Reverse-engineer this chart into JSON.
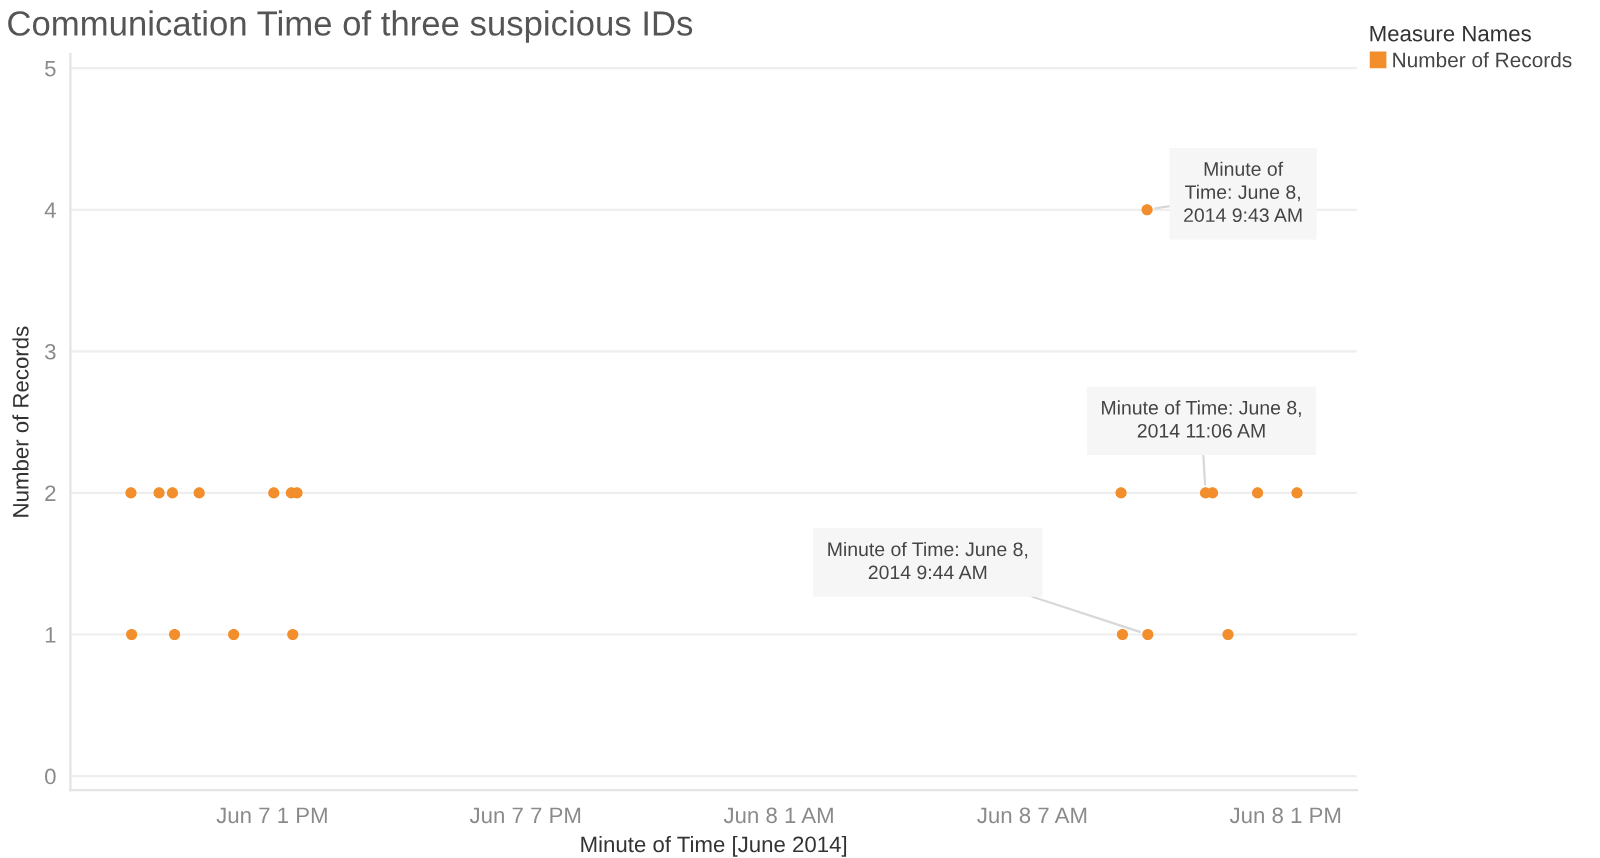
{
  "chart_data": {
    "type": "scatter",
    "title": "Communication Time of three suspicious IDs",
    "xlabel": "Minute of Time [June 2014]",
    "ylabel": "Number of Records",
    "legend_title": "Measure Names",
    "x": [
      "2014-06-07T09:39",
      "2014-06-07T09:40",
      "2014-06-07T10:19",
      "2014-06-07T10:38",
      "2014-06-07T10:41",
      "2014-06-07T11:16",
      "2014-06-07T12:05",
      "2014-06-07T13:02",
      "2014-06-07T13:27",
      "2014-06-07T13:29",
      "2014-06-07T13:35",
      "2014-06-08T09:06",
      "2014-06-08T09:08",
      "2014-06-08T09:43",
      "2014-06-08T09:44",
      "2014-06-08T11:06",
      "2014-06-08T11:16",
      "2014-06-08T11:38",
      "2014-06-08T12:20",
      "2014-06-08T13:16"
    ],
    "series": [
      {
        "name": "Number of Records",
        "color": "#f28e2b",
        "values": [
          2,
          1,
          2,
          2,
          1,
          2,
          1,
          2,
          2,
          1,
          2,
          2,
          1,
          4,
          1,
          2,
          2,
          1,
          2,
          2
        ]
      }
    ],
    "xlim": [
      "2014-06-07T08:13",
      "2014-06-08T14:41"
    ],
    "xticks": [
      {
        "value": "2014-06-07T13:00",
        "label": "Jun 7 1 PM"
      },
      {
        "value": "2014-06-07T19:00",
        "label": "Jun 7 7 PM"
      },
      {
        "value": "2014-06-08T01:00",
        "label": "Jun 8 1 AM"
      },
      {
        "value": "2014-06-08T07:00",
        "label": "Jun 8 7 AM"
      },
      {
        "value": "2014-06-08T13:00",
        "label": "Jun 8 1 PM"
      }
    ],
    "ylim": [
      -0.1,
      5.1
    ],
    "yticks": [
      0,
      1,
      2,
      3,
      4,
      5
    ],
    "grid": "y",
    "legend": "top right",
    "marker": "circle",
    "annotations": [
      {
        "text": "Minute of Time: June 8, 2014 9:43 AM",
        "x": "2014-06-08T09:43",
        "y": 4
      },
      {
        "text": "Minute of Time: June 8, 2014 11:06 AM",
        "x": "2014-06-08T11:06",
        "y": 2
      },
      {
        "text": "Minute of Time: June 8, 2014 9:44 AM",
        "x": "2014-06-08T09:44",
        "y": 1
      }
    ]
  }
}
